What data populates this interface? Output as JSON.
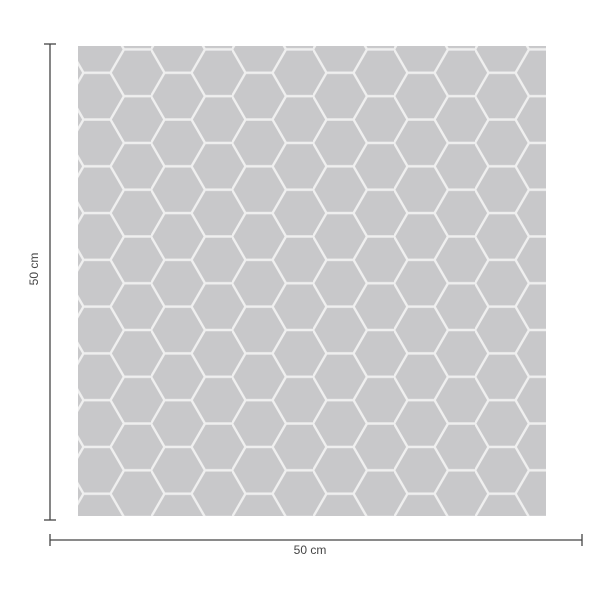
{
  "product": {
    "pattern": "hexagon",
    "tile_color": "#c8c8ca",
    "grout_color": "#eeeeee"
  },
  "dimensions": {
    "height_label": "50 cm",
    "width_label": "50 cm",
    "line_color": "#444444"
  }
}
